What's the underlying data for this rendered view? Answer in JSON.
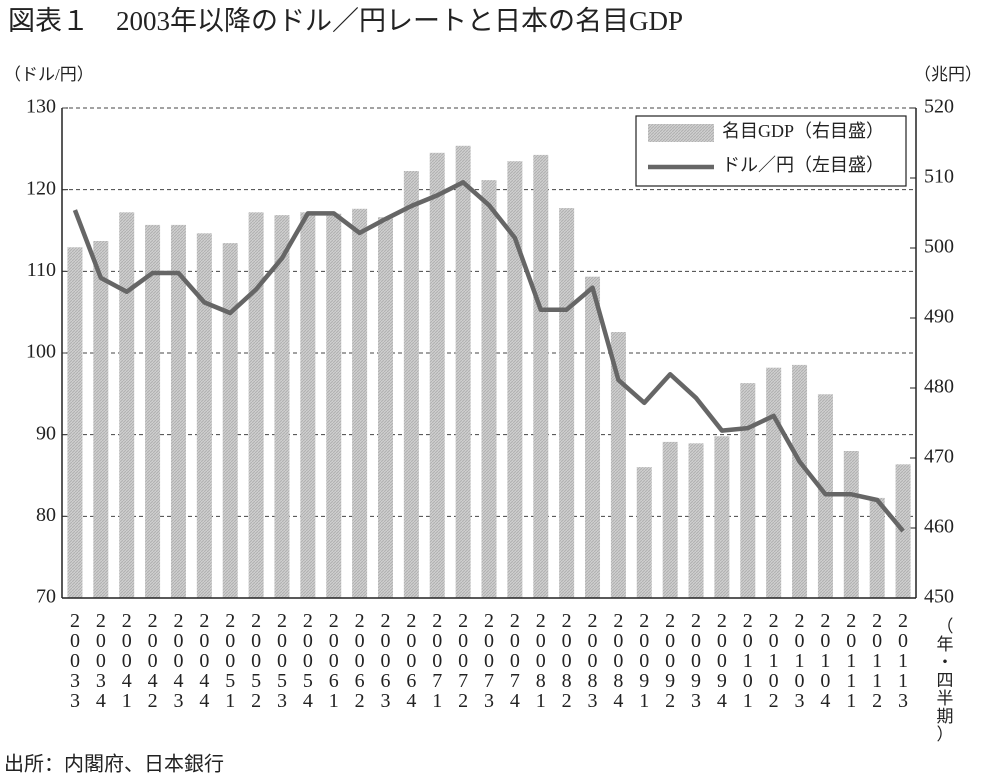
{
  "chart_data": {
    "type": "combo",
    "title": "図表１　2003年以降のドル／円レートと日本の名目GDP",
    "y_label": "（ドル/円）",
    "y2_label": "（兆円）",
    "x_label": "（年・四半期）",
    "source": "出所：内閣府、日本銀行",
    "categories": [
      "20033",
      "20034",
      "20041",
      "20042",
      "20043",
      "20044",
      "20051",
      "20052",
      "20053",
      "20054",
      "20061",
      "20062",
      "20063",
      "20064",
      "20071",
      "20072",
      "20073",
      "20074",
      "20081",
      "20082",
      "20083",
      "20084",
      "20091",
      "20092",
      "20093",
      "20094",
      "20101",
      "20102",
      "20103",
      "20104",
      "20111",
      "20112",
      "20113"
    ],
    "series": [
      {
        "name": "名目GDP（右目盛）",
        "type": "bar",
        "axis": "y2",
        "color": "#c4c4c4",
        "values": [
          500.1,
          501.0,
          505.1,
          503.3,
          503.3,
          502.1,
          500.7,
          505.1,
          504.7,
          505.1,
          504.9,
          505.6,
          504.4,
          511.0,
          513.6,
          514.6,
          509.7,
          512.4,
          513.3,
          505.7,
          495.9,
          488.0,
          468.7,
          472.3,
          472.1,
          473.1,
          480.7,
          482.9,
          483.3,
          479.1,
          471.0,
          464.3,
          469.1
        ]
      },
      {
        "name": "ドル／円（左目盛）",
        "type": "line",
        "axis": "y",
        "color": "#666666",
        "values": [
          117.5,
          109.2,
          107.5,
          109.8,
          109.8,
          106.2,
          104.9,
          107.8,
          111.6,
          117.1,
          117.1,
          114.7,
          116.4,
          118.0,
          119.3,
          120.9,
          118.1,
          114.1,
          105.3,
          105.3,
          108.0,
          96.7,
          93.9,
          97.4,
          94.5,
          90.5,
          90.8,
          92.3,
          86.7,
          82.7,
          82.7,
          82.0,
          78.2
        ]
      }
    ],
    "ylim": [
      70,
      130
    ],
    "yticks": [
      70,
      80,
      90,
      100,
      110,
      120,
      130
    ],
    "y2lim": [
      450,
      520
    ],
    "y2ticks": [
      450,
      460,
      470,
      480,
      490,
      500,
      510,
      520
    ],
    "grid": true,
    "legend": "upper right"
  }
}
